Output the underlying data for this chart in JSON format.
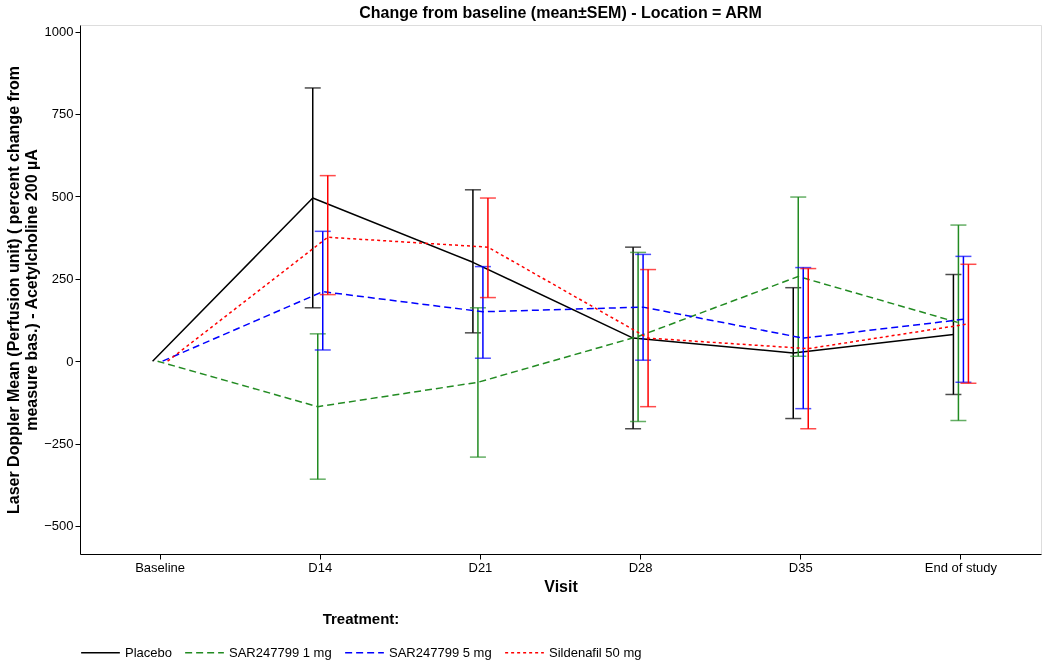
{
  "chart_data": {
    "type": "line",
    "title": "Change from baseline (mean±SEM) - Location = ARM",
    "xlabel": "Visit",
    "ylabel": "Laser Doppler Mean (Perfusion unit) ( percent change from measure bas.) - Acetylcholine 200 µA",
    "legend_title": "Treatment:",
    "categories": [
      "Baseline",
      "D14",
      "D21",
      "D28",
      "D35",
      "End of study"
    ],
    "ylim": [
      -585,
      1020
    ],
    "yticks": [
      -500,
      -250,
      0,
      250,
      500,
      750,
      1000
    ],
    "grid": false,
    "legend": "bottom",
    "marker": "none",
    "series": [
      {
        "name": "Placebo",
        "color": "#000000",
        "line_style": "solid",
        "values": [
          0,
          495,
          300,
          70,
          25,
          81
        ],
        "errors": [
          null,
          [
            162,
            829
          ],
          [
            86,
            520
          ],
          [
            -205,
            346
          ],
          [
            -174,
            223
          ],
          [
            -101,
            263
          ]
        ]
      },
      {
        "name": "SAR247799 1 mg",
        "color": "#228b22",
        "line_style": "dashed",
        "values": [
          0,
          -138,
          -64,
          75,
          257,
          117
        ],
        "errors": [
          null,
          [
            -358,
            83
          ],
          [
            -291,
            162
          ],
          [
            -183,
            330
          ],
          [
            15,
            498
          ],
          [
            -180,
            413
          ]
        ]
      },
      {
        "name": "SAR247799 5 mg",
        "color": "#0000ff",
        "line_style": "dashed",
        "values": [
          0,
          211,
          150,
          164,
          70,
          127
        ],
        "errors": [
          null,
          [
            34,
            394
          ],
          [
            9,
            287
          ],
          [
            3,
            324
          ],
          [
            -144,
            284
          ],
          [
            -64,
            318
          ]
        ]
      },
      {
        "name": "Sildenafil 50 mg",
        "color": "#ff0000",
        "line_style": "dotted",
        "values": [
          0,
          376,
          346,
          70,
          38,
          113
        ],
        "errors": [
          null,
          [
            202,
            563
          ],
          [
            193,
            495
          ],
          [
            -138,
            278
          ],
          [
            -205,
            281
          ],
          [
            -67,
            294
          ]
        ]
      }
    ]
  }
}
